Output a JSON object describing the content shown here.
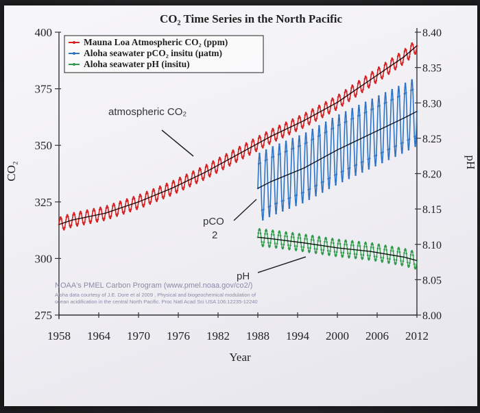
{
  "chart_data": {
    "type": "line",
    "title": "CO₂ Time Series in the North Pacific",
    "xlabel": "Year",
    "ylabel_left": "CO₂",
    "ylabel_right": "pH",
    "x_ticks": [
      "1958",
      "1964",
      "1970",
      "1976",
      "1982",
      "1988",
      "1994",
      "2000",
      "2006",
      "2012"
    ],
    "y_left_ticks": [
      "275",
      "300",
      "325",
      "350",
      "375",
      "400"
    ],
    "y_right_ticks": [
      "8.00",
      "8.05",
      "8.10",
      "8.15",
      "8.20",
      "8.25",
      "8.30",
      "8.35",
      "8.40"
    ],
    "xlim": [
      1958,
      2012
    ],
    "ylim_left": [
      275,
      400
    ],
    "ylim_right": [
      8.0,
      8.4
    ],
    "legend": {
      "placement": "top-left",
      "entries": [
        "Mauna Loa Atmospheric CO₂ (ppm)",
        "Aloha seawater pCO₂ insitu (μatm)",
        "Aloha seawater pH (insitu)"
      ]
    },
    "series": [
      {
        "name": "Mauna Loa Atmospheric CO₂ (ppm)",
        "axis": "left",
        "color": "#d42020",
        "x": [
          1958,
          1960,
          1965,
          1970,
          1975,
          1980,
          1985,
          1990,
          1995,
          2000,
          2005,
          2010,
          2012
        ],
        "values": [
          315,
          317,
          320,
          325,
          331,
          338,
          346,
          354,
          361,
          369,
          379,
          389,
          394
        ],
        "seasonal_amplitude": 3
      },
      {
        "name": "Aloha seawater pCO₂ insitu (μatm)",
        "axis": "left",
        "color": "#2e72c2",
        "x": [
          1988,
          1990,
          1995,
          2000,
          2005,
          2010,
          2012
        ],
        "values": [
          331,
          334,
          340,
          348,
          355,
          362,
          365
        ],
        "seasonal_amplitude": 15
      },
      {
        "name": "Aloha seawater pH (insitu)",
        "axis": "right",
        "color": "#2f9a4a",
        "x": [
          1988,
          1990,
          1995,
          2000,
          2005,
          2010,
          2012
        ],
        "values": [
          8.11,
          8.108,
          8.102,
          8.095,
          8.09,
          8.082,
          8.077
        ],
        "seasonal_amplitude": 0.012
      }
    ],
    "annotations": [
      {
        "text": "atmospheric CO₂",
        "points_to": "Mauna Loa Atmospheric CO₂ (ppm)"
      },
      {
        "text": "pCO",
        "subscript": "2",
        "points_to": "Aloha seawater pCO₂ insitu (μatm)"
      },
      {
        "text": "pH",
        "points_to": "Aloha seawater pH (insitu)"
      }
    ],
    "credits": [
      "NOAA's PMEL Carbon Program (www.pmel.noaa.gov/co2/)",
      "Aloha data courtesy of J.E. Dore et al 2009 , Physical and biogeochemical modulation of",
      "ocean acidification in the central North Pacific. Proc Natl Acad Sci USA 106:12235-12240"
    ]
  }
}
